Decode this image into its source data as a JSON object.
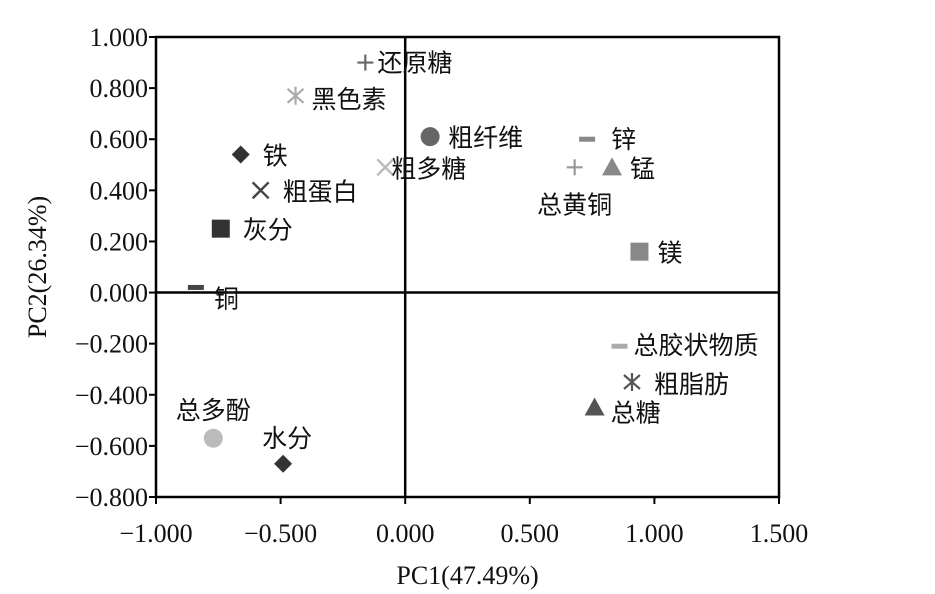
{
  "chart_data": {
    "type": "scatter",
    "title": "",
    "xlabel": "PC1(47.49%)",
    "ylabel": "PC2(26.34%)",
    "xlim": [
      -1.0,
      1.5
    ],
    "ylim": [
      -0.8,
      1.0
    ],
    "xticks": [
      "−1.000",
      "−0.500",
      "0.000",
      "0.500",
      "1.000",
      "1.500"
    ],
    "yticks": [
      "1.000",
      "0.800",
      "0.600",
      "0.400",
      "0.200",
      "0.000",
      "−0.200",
      "−0.400",
      "−0.600",
      "−0.800"
    ],
    "quadrant_lines": {
      "x": 0.0,
      "y": 0.0
    },
    "grid": false,
    "points": [
      {
        "name": "还原糖",
        "x": -0.16,
        "y": 0.9,
        "marker": "plus",
        "color": "#666666"
      },
      {
        "name": "黑色素",
        "x": -0.44,
        "y": 0.77,
        "marker": "asterisk",
        "color": "#aaaaaa"
      },
      {
        "name": "铁",
        "x": -0.66,
        "y": 0.54,
        "marker": "diamond",
        "color": "#333333"
      },
      {
        "name": "粗蛋白",
        "x": -0.58,
        "y": 0.4,
        "marker": "x",
        "color": "#444444"
      },
      {
        "name": "灰分",
        "x": -0.74,
        "y": 0.25,
        "marker": "square",
        "color": "#333333"
      },
      {
        "name": "铜",
        "x": -0.84,
        "y": 0.02,
        "marker": "dash",
        "color": "#444444"
      },
      {
        "name": "粗纤维",
        "x": 0.1,
        "y": 0.61,
        "marker": "circle",
        "color": "#666666"
      },
      {
        "name": "粗多糖",
        "x": -0.08,
        "y": 0.49,
        "marker": "x",
        "color": "#bbbbbb"
      },
      {
        "name": "锌",
        "x": 0.73,
        "y": 0.6,
        "marker": "dash",
        "color": "#888888"
      },
      {
        "name": "总黄铜",
        "x": 0.68,
        "y": 0.49,
        "marker": "plus",
        "color": "#999999"
      },
      {
        "name": "锰",
        "x": 0.83,
        "y": 0.49,
        "marker": "triangle",
        "color": "#888888"
      },
      {
        "name": "镁",
        "x": 0.94,
        "y": 0.16,
        "marker": "square",
        "color": "#888888"
      },
      {
        "name": "总胶状物质",
        "x": 0.86,
        "y": -0.21,
        "marker": "dash",
        "color": "#aaaaaa"
      },
      {
        "name": "粗脂肪",
        "x": 0.91,
        "y": -0.35,
        "marker": "asterisk",
        "color": "#555555"
      },
      {
        "name": "总糖",
        "x": 0.76,
        "y": -0.45,
        "marker": "triangle",
        "color": "#555555"
      },
      {
        "name": "总多酚",
        "x": -0.77,
        "y": -0.57,
        "marker": "circle",
        "color": "#bbbbbb"
      },
      {
        "name": "水分",
        "x": -0.49,
        "y": -0.67,
        "marker": "diamond",
        "color": "#333333"
      }
    ]
  }
}
